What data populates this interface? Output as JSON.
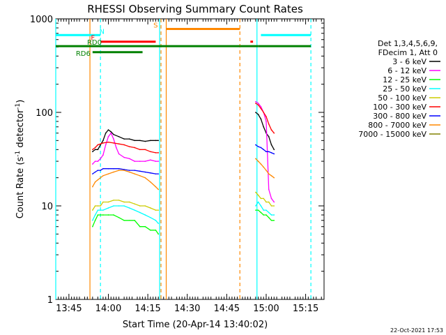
{
  "chart_data": {
    "type": "line",
    "title": "RHESSI Observing Summary Count Rates",
    "xlabel": "Start Time (20-Apr-14 13:40:02)",
    "ylabel_main": "Count Rate (s",
    "ylabel_sup1": "-1",
    "ylabel_mid": " detector",
    "ylabel_sup2": "-1",
    "ylabel_end": ")",
    "yscale": "log",
    "ylim": [
      1,
      1000
    ],
    "xlim_minutes_after_1340": [
      0,
      102
    ],
    "y_ticks": [
      "1",
      "10",
      "100",
      "1000"
    ],
    "x_ticks": [
      {
        "t": 5,
        "label": "13:45"
      },
      {
        "t": 20,
        "label": "14:00"
      },
      {
        "t": 35,
        "label": "14:15"
      },
      {
        "t": 50,
        "label": "14:30"
      },
      {
        "t": 65,
        "label": "14:45"
      },
      {
        "t": 80,
        "label": "15:00"
      },
      {
        "t": 95,
        "label": "15:15"
      }
    ],
    "legend_header": [
      "Det 1,3,4,5,6,9,",
      "FDecim 1, Att 0"
    ],
    "series": [
      {
        "name": "3 - 6 keV",
        "color": "#000000",
        "segments": [
          [
            [
              14,
              38
            ],
            [
              15,
              40
            ],
            [
              16,
              40
            ],
            [
              17,
              45
            ],
            [
              18,
              50
            ],
            [
              19,
              60
            ],
            [
              20,
              65
            ],
            [
              21,
              62
            ],
            [
              22,
              58
            ],
            [
              24,
              55
            ],
            [
              26,
              52
            ],
            [
              28,
              52
            ],
            [
              30,
              50
            ],
            [
              32,
              50
            ],
            [
              34,
              49
            ],
            [
              36,
              50
            ],
            [
              38,
              50
            ],
            [
              39,
              50
            ]
          ],
          [
            [
              76,
              100
            ],
            [
              77,
              95
            ],
            [
              78,
              85
            ],
            [
              79,
              70
            ],
            [
              80,
              60
            ],
            [
              81,
              55
            ],
            [
              82,
              45
            ],
            [
              83,
              40
            ]
          ]
        ]
      },
      {
        "name": "6 - 12 keV",
        "color": "#ff00ff",
        "segments": [
          [
            [
              14,
              28
            ],
            [
              15,
              30
            ],
            [
              16,
              30
            ],
            [
              17,
              32
            ],
            [
              18,
              35
            ],
            [
              19,
              45
            ],
            [
              20,
              55
            ],
            [
              21,
              60
            ],
            [
              22,
              52
            ],
            [
              23,
              42
            ],
            [
              24,
              36
            ],
            [
              26,
              33
            ],
            [
              28,
              32
            ],
            [
              30,
              30
            ],
            [
              32,
              30
            ],
            [
              34,
              30
            ],
            [
              36,
              31
            ],
            [
              38,
              30
            ],
            [
              39,
              30
            ]
          ],
          [
            [
              76,
              130
            ],
            [
              77,
              125
            ],
            [
              78,
              115
            ],
            [
              79,
              100
            ],
            [
              80,
              80
            ],
            [
              81,
              15
            ],
            [
              82,
              12
            ],
            [
              83,
              11
            ]
          ]
        ]
      },
      {
        "name": "12 - 25 keV",
        "color": "#00ff00",
        "segments": [
          [
            [
              14,
              6
            ],
            [
              15,
              7
            ],
            [
              16,
              8
            ],
            [
              17,
              8
            ],
            [
              18,
              8
            ],
            [
              20,
              8
            ],
            [
              22,
              8
            ],
            [
              24,
              7.5
            ],
            [
              26,
              7
            ],
            [
              28,
              7
            ],
            [
              30,
              7
            ],
            [
              32,
              6
            ],
            [
              34,
              6
            ],
            [
              36,
              5.5
            ],
            [
              38,
              5.5
            ],
            [
              39,
              5
            ]
          ],
          [
            [
              76,
              9
            ],
            [
              77,
              9
            ],
            [
              78,
              8.5
            ],
            [
              79,
              8
            ],
            [
              80,
              8
            ],
            [
              81,
              7.5
            ],
            [
              82,
              7
            ],
            [
              83,
              7
            ]
          ]
        ]
      },
      {
        "name": "25 - 50 keV",
        "color": "#00ffff",
        "segments": [
          [
            [
              14,
              7
            ],
            [
              15,
              8
            ],
            [
              16,
              9
            ],
            [
              17,
              9
            ],
            [
              18,
              9
            ],
            [
              20,
              9.5
            ],
            [
              22,
              10
            ],
            [
              24,
              10
            ],
            [
              26,
              10
            ],
            [
              28,
              9.5
            ],
            [
              30,
              9
            ],
            [
              32,
              8.5
            ],
            [
              34,
              8
            ],
            [
              36,
              7.5
            ],
            [
              38,
              7
            ],
            [
              39,
              6.5
            ]
          ],
          [
            [
              76,
              10
            ],
            [
              77,
              11
            ],
            [
              78,
              10
            ],
            [
              79,
              9
            ],
            [
              80,
              9
            ],
            [
              81,
              8.5
            ],
            [
              82,
              8
            ],
            [
              83,
              8
            ]
          ]
        ]
      },
      {
        "name": "50 - 100 keV",
        "color": "#cccc00",
        "segments": [
          [
            [
              14,
              9
            ],
            [
              15,
              10
            ],
            [
              16,
              10
            ],
            [
              17,
              10
            ],
            [
              18,
              11
            ],
            [
              20,
              11
            ],
            [
              22,
              11.5
            ],
            [
              24,
              11.5
            ],
            [
              26,
              11
            ],
            [
              28,
              11
            ],
            [
              30,
              10.5
            ],
            [
              32,
              10
            ],
            [
              34,
              10
            ],
            [
              36,
              9.5
            ],
            [
              38,
              9
            ],
            [
              39,
              9
            ]
          ],
          [
            [
              76,
              14
            ],
            [
              77,
              13
            ],
            [
              78,
              12
            ],
            [
              79,
              12
            ],
            [
              80,
              11
            ],
            [
              81,
              11
            ],
            [
              82,
              10
            ],
            [
              83,
              10
            ]
          ]
        ]
      },
      {
        "name": "100 - 300 keV",
        "color": "#ff0000",
        "segments": [
          [
            [
              14,
              40
            ],
            [
              15,
              42
            ],
            [
              16,
              45
            ],
            [
              17,
              46
            ],
            [
              18,
              47
            ],
            [
              20,
              48
            ],
            [
              22,
              47
            ],
            [
              24,
              46
            ],
            [
              26,
              45
            ],
            [
              28,
              43
            ],
            [
              30,
              42
            ],
            [
              32,
              40
            ],
            [
              34,
              40
            ],
            [
              36,
              38
            ],
            [
              38,
              37
            ],
            [
              39,
              37
            ]
          ],
          [
            [
              76,
              125
            ],
            [
              77,
              120
            ],
            [
              78,
              110
            ],
            [
              79,
              100
            ],
            [
              80,
              90
            ],
            [
              81,
              75
            ],
            [
              82,
              65
            ],
            [
              83,
              60
            ]
          ]
        ]
      },
      {
        "name": "300 - 800 keV",
        "color": "#0000ff",
        "segments": [
          [
            [
              14,
              22
            ],
            [
              15,
              23
            ],
            [
              16,
              24
            ],
            [
              17,
              24
            ],
            [
              18,
              25
            ],
            [
              20,
              25
            ],
            [
              22,
              25
            ],
            [
              24,
              25
            ],
            [
              26,
              24.5
            ],
            [
              28,
              24
            ],
            [
              30,
              24
            ],
            [
              32,
              23.5
            ],
            [
              34,
              23
            ],
            [
              36,
              22.5
            ],
            [
              38,
              22
            ],
            [
              39,
              22
            ]
          ],
          [
            [
              76,
              45
            ],
            [
              77,
              43
            ],
            [
              78,
              42
            ],
            [
              79,
              40
            ],
            [
              80,
              38
            ],
            [
              81,
              38
            ],
            [
              82,
              37
            ],
            [
              83,
              36
            ]
          ]
        ]
      },
      {
        "name": "800 - 7000 keV",
        "color": "#ff8800",
        "segments": [
          [
            [
              14,
              16
            ],
            [
              15,
              18
            ],
            [
              16,
              19
            ],
            [
              17,
              20
            ],
            [
              18,
              21
            ],
            [
              20,
              22
            ],
            [
              22,
              23
            ],
            [
              24,
              24
            ],
            [
              26,
              24
            ],
            [
              28,
              23
            ],
            [
              30,
              22
            ],
            [
              32,
              21
            ],
            [
              34,
              20
            ],
            [
              36,
              18
            ],
            [
              38,
              16
            ],
            [
              39,
              15
            ]
          ],
          [
            [
              76,
              32
            ],
            [
              77,
              30
            ],
            [
              78,
              28
            ],
            [
              79,
              26
            ],
            [
              80,
              24
            ],
            [
              81,
              22
            ],
            [
              82,
              21
            ],
            [
              83,
              20
            ]
          ]
        ]
      },
      {
        "name": "7000 - 15000 keV",
        "color": "#808000",
        "segments": []
      }
    ],
    "vlines": [
      {
        "t": 0,
        "color": "#00ffff",
        "style": "solid"
      },
      {
        "t": 13,
        "color": "#ff8800",
        "style": "solid"
      },
      {
        "t": 17,
        "color": "#00ffff",
        "style": "dashed"
      },
      {
        "t": 39.5,
        "color": "#00ffff",
        "style": "solid"
      },
      {
        "t": 40,
        "color": "#ff8800",
        "style": "dashed"
      },
      {
        "t": 42,
        "color": "#ff8800",
        "style": "solid"
      },
      {
        "t": 70,
        "color": "#ff8800",
        "style": "dashed"
      },
      {
        "t": 76.5,
        "color": "#00ffff",
        "style": "solid"
      },
      {
        "t": 97,
        "color": "#00ffff",
        "style": "dashed"
      }
    ],
    "flag_bars": [
      {
        "label": "N",
        "color": "#00ffff",
        "y": 670,
        "segments": [
          [
            0,
            17
          ],
          [
            78,
            97
          ]
        ]
      },
      {
        "label": "S",
        "color": "#ff8800",
        "y": 780,
        "segments": [
          [
            42,
            70
          ]
        ]
      },
      {
        "label": "F",
        "color": "#ff0000",
        "y": 570,
        "segments": [
          [
            17,
            38
          ],
          [
            74,
            75
          ]
        ]
      },
      {
        "label": "RD0",
        "color": "#008000",
        "y": 510,
        "segments": [
          [
            0,
            70
          ],
          [
            70,
            77
          ],
          [
            77,
            97
          ]
        ]
      },
      {
        "label": "RD6",
        "color": "#008000",
        "y": 440,
        "segments": [
          [
            14,
            33
          ]
        ]
      }
    ],
    "timestamp": "22-Oct-2021 17:53"
  }
}
